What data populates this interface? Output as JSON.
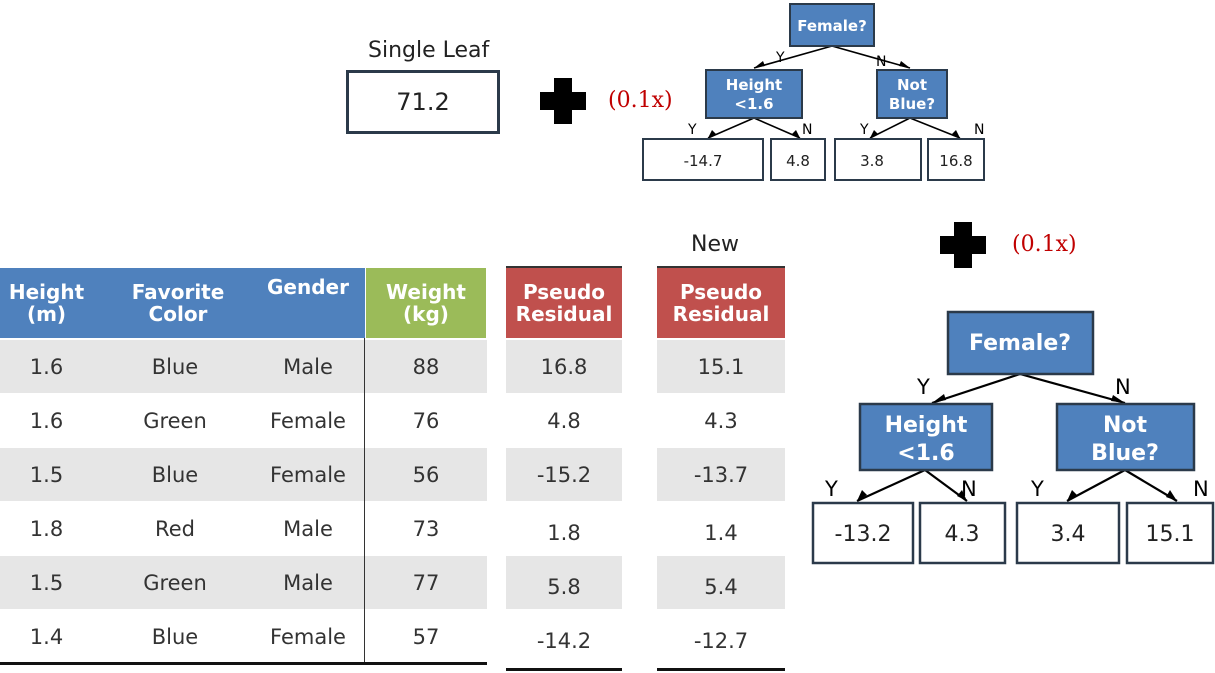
{
  "top": {
    "single_leaf_label": "Single Leaf",
    "single_leaf_value": "71.2",
    "scale_1": "(0.1x)",
    "tree1": {
      "root": "Female?",
      "left_split_l1": "Height",
      "left_split_l2": "<1.6",
      "right_split_l1": "Not",
      "right_split_l2": "Blue?",
      "yes": "Y",
      "no": "N",
      "leaves": [
        "-14.7",
        "4.8",
        "3.8",
        "16.8"
      ]
    }
  },
  "second": {
    "scale_2": "(0.1x)",
    "tree2": {
      "root": "Female?",
      "left_split_l1": "Height",
      "left_split_l2": "<1.6",
      "right_split_l1": "Not",
      "right_split_l2": "Blue?",
      "yes": "Y",
      "no": "N",
      "leaves": [
        "-13.2",
        "4.3",
        "3.4",
        "15.1"
      ]
    }
  },
  "table": {
    "headers": {
      "height_l1": "Height",
      "height_l2": "(m)",
      "color_l1": "Favorite",
      "color_l2": "Color",
      "gender": "Gender",
      "weight_l1": "Weight",
      "weight_l2": "(kg)",
      "pr_l1": "Pseudo",
      "pr_l2": "Residual",
      "new_label": "New",
      "npr_l1": "Pseudo",
      "npr_l2": "Residual"
    },
    "rows": [
      {
        "height": "1.6",
        "color": "Blue",
        "gender": "Male",
        "weight": "88",
        "pr": "16.8",
        "npr": "15.1"
      },
      {
        "height": "1.6",
        "color": "Green",
        "gender": "Female",
        "weight": "76",
        "pr": "4.8",
        "npr": "4.3"
      },
      {
        "height": "1.5",
        "color": "Blue",
        "gender": "Female",
        "weight": "56",
        "pr": "-15.2",
        "npr": "-13.7"
      },
      {
        "height": "1.8",
        "color": "Red",
        "gender": "Male",
        "weight": "73",
        "pr": "1.8",
        "npr": "1.4"
      },
      {
        "height": "1.5",
        "color": "Green",
        "gender": "Male",
        "weight": "77",
        "pr": "5.8",
        "npr": "5.4"
      },
      {
        "height": "1.4",
        "color": "Blue",
        "gender": "Female",
        "weight": "57",
        "pr": "-14.2",
        "npr": "-12.7"
      }
    ]
  },
  "colors": {
    "node_blue": "#4f81bd",
    "header_blue": "#4f81bd",
    "header_green": "#9bbb59",
    "header_red": "#c0504d",
    "scale_red": "#c00000"
  }
}
